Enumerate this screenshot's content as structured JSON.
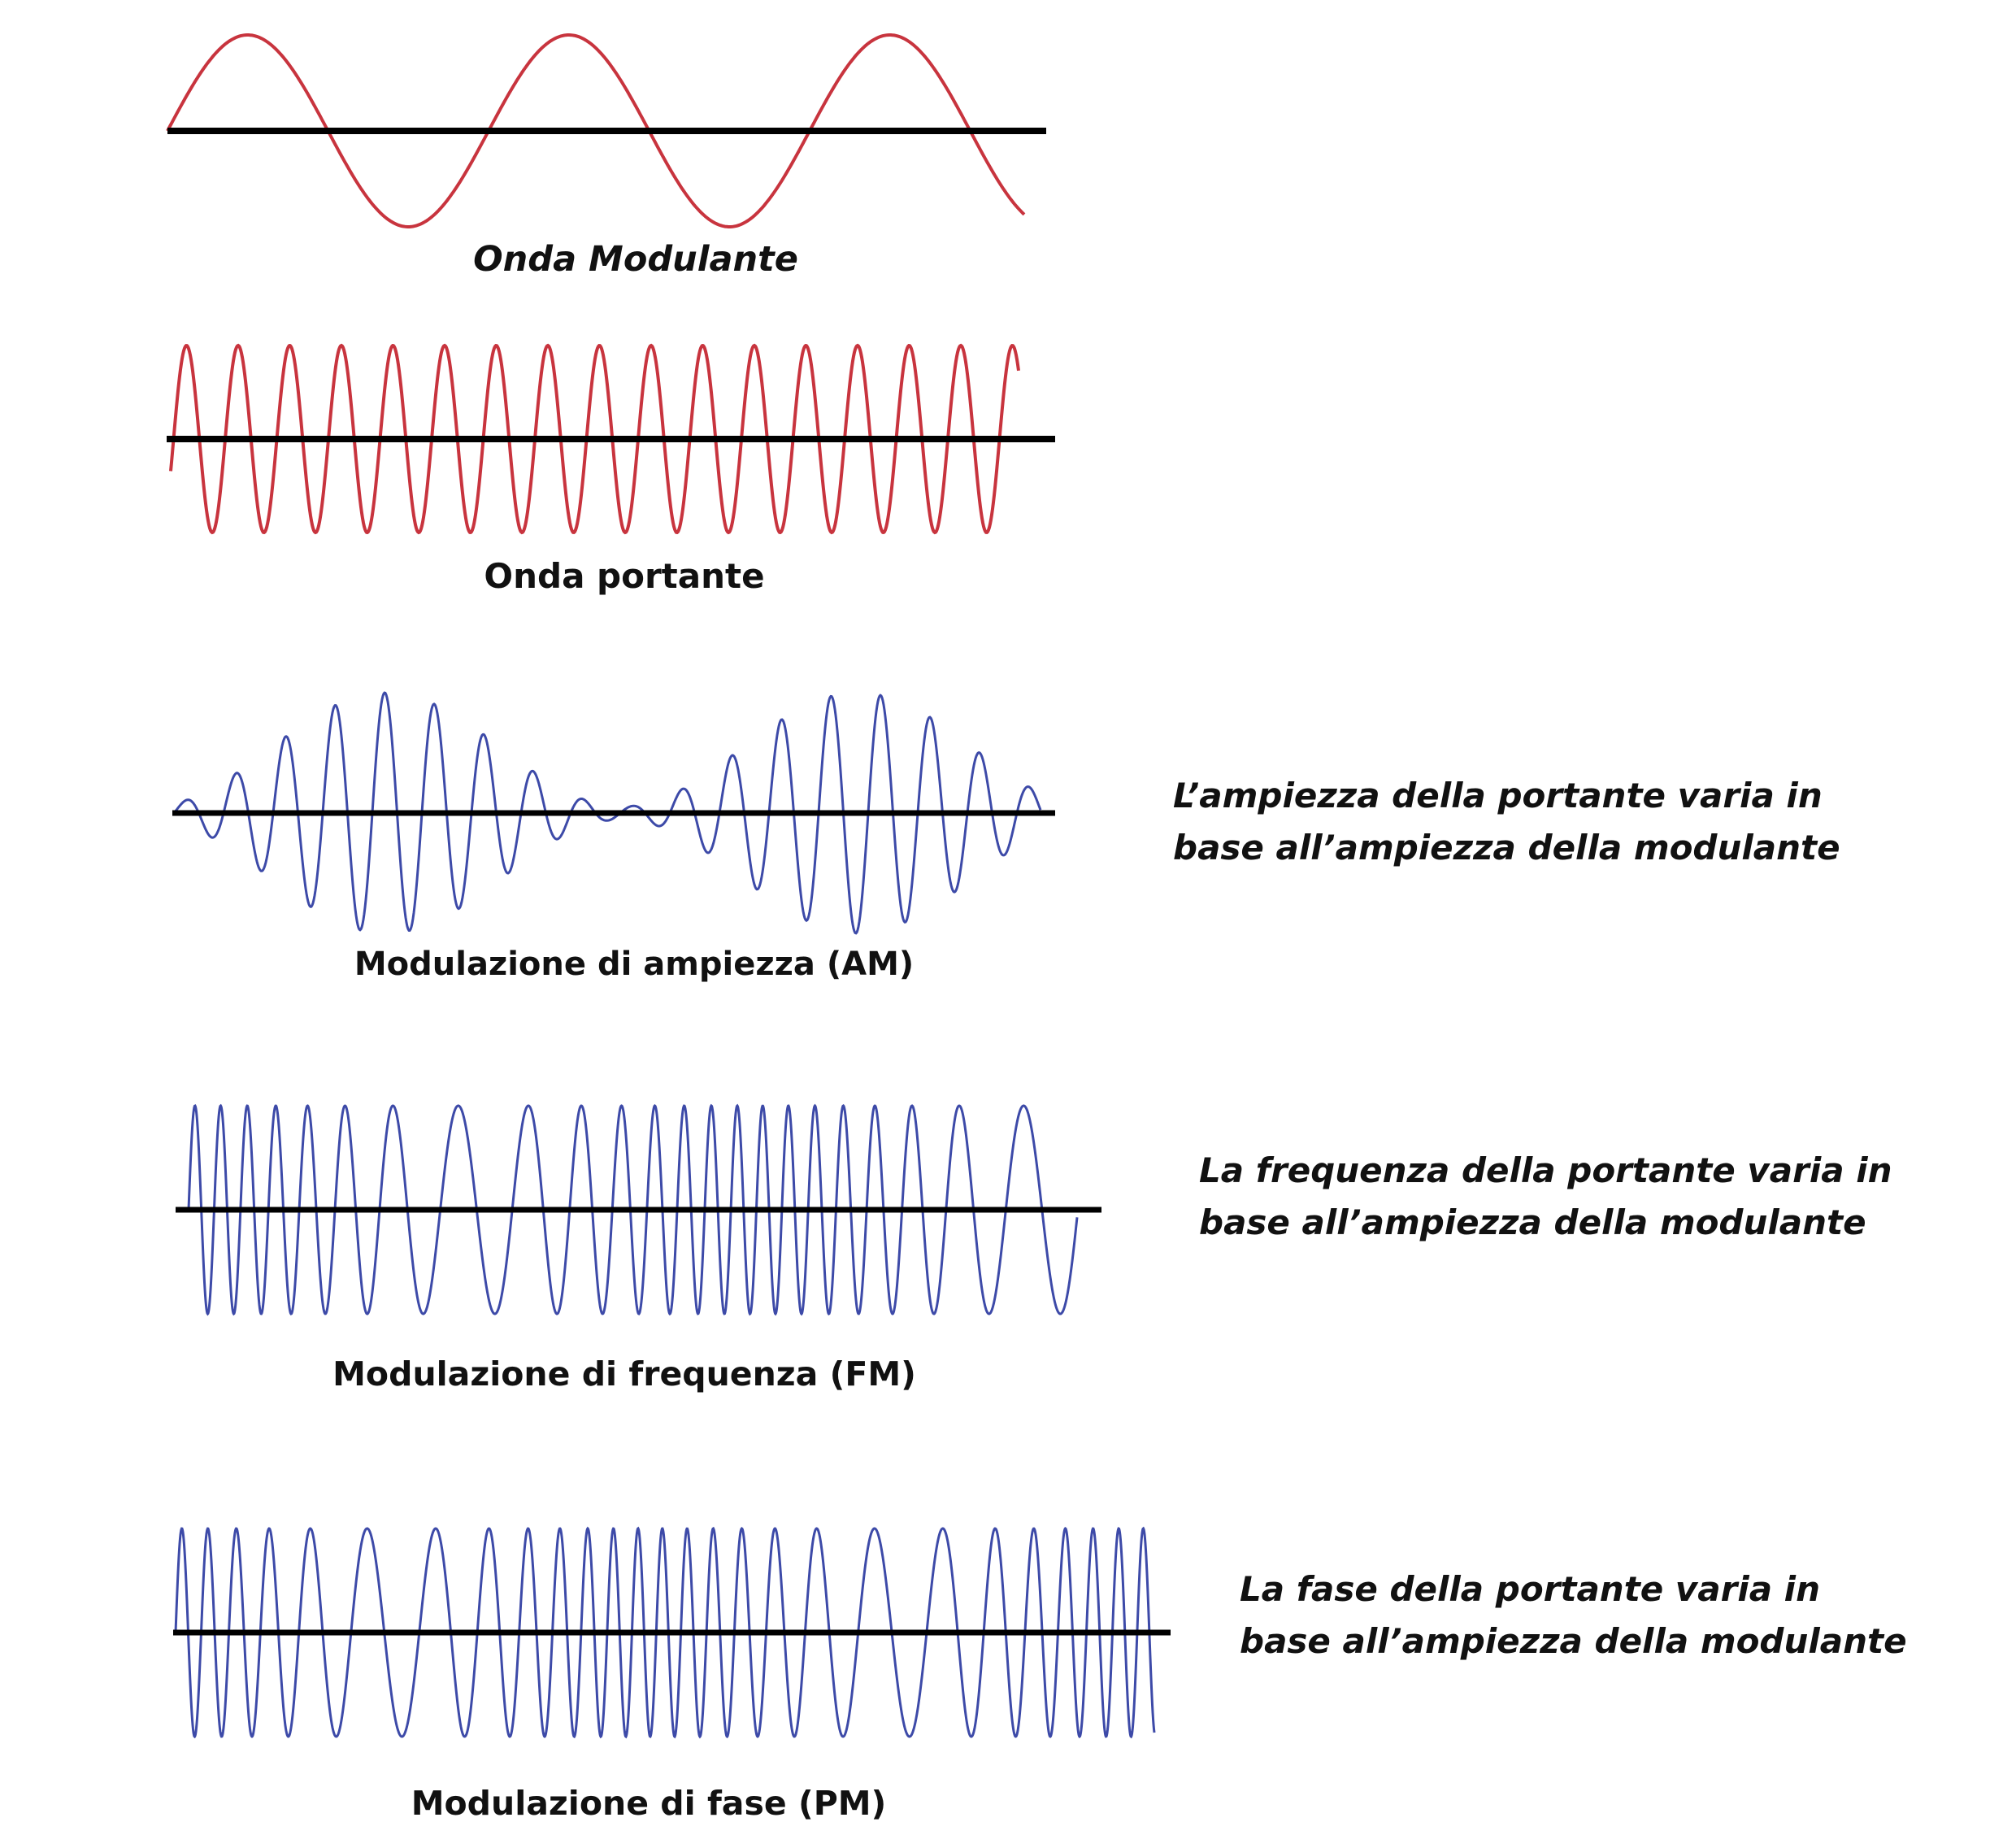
{
  "colors": {
    "axis": "#000000",
    "top_wave": "#c8343e",
    "modulated_wave": "#3d4aa8",
    "text": "#111111"
  },
  "panels": [
    {
      "caption": "Onda Modulante",
      "description": null
    },
    {
      "caption": "Onda portante",
      "description": null
    },
    {
      "caption": "Modulazione di ampiezza (AM)",
      "description": [
        "L’ampiezza della portante varia in",
        "base all’ampiezza della modulante"
      ]
    },
    {
      "caption": "Modulazione di frequenza (FM)",
      "description": [
        "La frequenza della portante varia in",
        "base all’ampiezza della modulante"
      ]
    },
    {
      "caption": "Modulazione di fase  (PM)",
      "description": [
        "La fase della portante varia in",
        "base all’ampiezza della modulante"
      ]
    }
  ]
}
